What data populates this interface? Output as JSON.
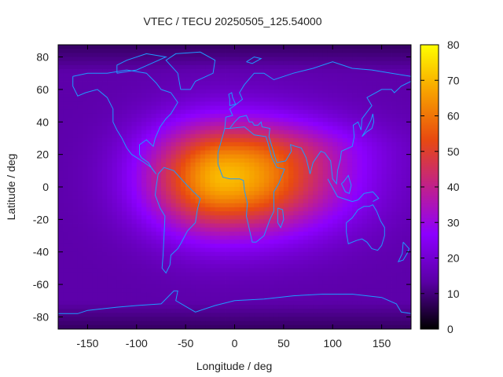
{
  "chart_data": {
    "type": "heatmap",
    "title": "VTEC / TECU 20250505_125.54000",
    "xlabel": "Longitude / deg",
    "ylabel": "Latitude / deg",
    "xlim": [
      -180,
      180
    ],
    "ylim": [
      -87.5,
      87.5
    ],
    "x_ticks": [
      -150,
      -100,
      -50,
      0,
      50,
      100,
      150
    ],
    "y_ticks": [
      -80,
      -60,
      -40,
      -20,
      0,
      20,
      40,
      60,
      80
    ],
    "colorbar": {
      "range": [
        0,
        80
      ],
      "ticks": [
        0,
        10,
        20,
        30,
        40,
        50,
        60,
        70,
        80
      ],
      "palette": [
        "#000000",
        "#5a00a5",
        "#8c00ff",
        "#c0208c",
        "#e84a10",
        "#f7a000",
        "#ffff00"
      ]
    },
    "field_model": {
      "background_vtec": 14,
      "enhancement_peak_vtec": 70,
      "peak_lon": -10,
      "peak_lat": 5,
      "lon_width_west": 55,
      "lon_width_east": 80,
      "lat_width": 24
    },
    "coastline_color": "#1e9bff"
  }
}
